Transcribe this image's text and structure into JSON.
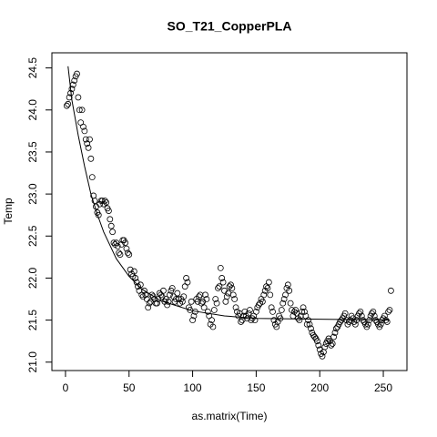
{
  "chart_data": {
    "type": "scatter",
    "title": "SO_T21_CopperPLA",
    "x_label": "as.matrix(Time)",
    "y_label": "Temp",
    "xlim": [
      -10.7,
      268.6
    ],
    "ylim": [
      20.9,
      24.68
    ],
    "xticks": [
      0,
      50,
      100,
      150,
      200,
      250
    ],
    "yticks": [
      {
        "value": 21,
        "label": "21.0"
      },
      21.5,
      {
        "value": 22,
        "label": "22.0"
      },
      22.5,
      {
        "value": 23,
        "label": "23.0"
      },
      23.5,
      {
        "value": 24,
        "label": "24.0"
      },
      24.5
    ],
    "series": [
      {
        "type": "scatter",
        "color": "#000000",
        "x": [
          1,
          2,
          3,
          4,
          5,
          6,
          7,
          8,
          9,
          10,
          11,
          12,
          13,
          14,
          15,
          16,
          17,
          18,
          19,
          20,
          21,
          22,
          23,
          24,
          25,
          26,
          27,
          28,
          29,
          30,
          31,
          32,
          33,
          34,
          35,
          36,
          37,
          38,
          39,
          40,
          41,
          42,
          43,
          44,
          45,
          46,
          47,
          48,
          49,
          50,
          51,
          52,
          53,
          54,
          55,
          56,
          57,
          58,
          59,
          60,
          61,
          62,
          63,
          64,
          65,
          66,
          67,
          68,
          69,
          70,
          71,
          72,
          73,
          74,
          75,
          76,
          77,
          78,
          79,
          80,
          81,
          82,
          83,
          84,
          85,
          86,
          87,
          88,
          89,
          90,
          91,
          92,
          93,
          94,
          95,
          96,
          97,
          98,
          99,
          100,
          101,
          102,
          103,
          104,
          105,
          106,
          107,
          108,
          109,
          110,
          111,
          112,
          113,
          114,
          115,
          116,
          117,
          118,
          119,
          120,
          121,
          122,
          123,
          124,
          125,
          126,
          127,
          128,
          129,
          130,
          131,
          132,
          133,
          134,
          135,
          136,
          137,
          138,
          139,
          140,
          141,
          142,
          143,
          144,
          145,
          146,
          147,
          148,
          149,
          150,
          151,
          152,
          153,
          154,
          155,
          156,
          157,
          158,
          159,
          160,
          161,
          162,
          163,
          164,
          165,
          166,
          167,
          168,
          169,
          170,
          171,
          172,
          173,
          174,
          175,
          176,
          177,
          178,
          179,
          180,
          181,
          182,
          183,
          184,
          185,
          186,
          187,
          188,
          189,
          190,
          191,
          192,
          193,
          194,
          195,
          196,
          197,
          198,
          199,
          200,
          201,
          202,
          203,
          204,
          205,
          206,
          207,
          208,
          209,
          210,
          211,
          212,
          213,
          214,
          215,
          216,
          217,
          218,
          219,
          220,
          221,
          222,
          223,
          224,
          225,
          226,
          227,
          228,
          229,
          230,
          231,
          232,
          233,
          234,
          235,
          236,
          237,
          238,
          239,
          240,
          241,
          242,
          243,
          244,
          245,
          246,
          247,
          248,
          249,
          250,
          251,
          252,
          253,
          254,
          255,
          256
        ],
        "values": [
          24.05,
          24.07,
          24.15,
          24.2,
          24.25,
          24.3,
          24.35,
          24.4,
          24.43,
          24.15,
          24.0,
          23.85,
          24.0,
          23.8,
          23.75,
          23.65,
          23.6,
          23.55,
          23.65,
          23.42,
          23.2,
          22.98,
          22.92,
          22.85,
          22.78,
          22.75,
          22.88,
          22.92,
          22.92,
          22.88,
          22.92,
          22.9,
          22.83,
          22.8,
          22.7,
          22.62,
          22.55,
          22.42,
          22.4,
          22.42,
          22.38,
          22.3,
          22.28,
          22.4,
          22.45,
          22.45,
          22.42,
          22.35,
          22.3,
          22.28,
          22.1,
          22.05,
          22.02,
          22.08,
          22.0,
          21.95,
          21.9,
          21.85,
          21.92,
          21.8,
          21.78,
          21.85,
          21.8,
          21.75,
          21.65,
          21.7,
          21.72,
          21.8,
          21.78,
          21.75,
          21.7,
          21.7,
          21.75,
          21.82,
          21.8,
          21.78,
          21.85,
          21.72,
          21.75,
          21.68,
          21.72,
          21.8,
          21.85,
          21.88,
          21.78,
          21.72,
          21.75,
          21.82,
          21.75,
          21.7,
          21.75,
          21.72,
          21.78,
          21.9,
          22.0,
          21.95,
          21.65,
          21.62,
          21.72,
          21.5,
          21.55,
          21.6,
          21.75,
          21.72,
          21.78,
          21.8,
          21.7,
          21.72,
          21.65,
          21.8,
          21.75,
          21.6,
          21.55,
          21.45,
          21.5,
          21.42,
          21.62,
          21.75,
          21.7,
          21.88,
          21.9,
          22.12,
          22.0,
          21.95,
          21.85,
          21.72,
          21.78,
          21.82,
          21.9,
          21.92,
          21.88,
          21.8,
          21.75,
          21.65,
          21.6,
          21.55,
          21.58,
          21.48,
          21.5,
          21.55,
          21.6,
          21.55,
          21.52,
          21.58,
          21.62,
          21.5,
          21.52,
          21.55,
          21.5,
          21.6,
          21.65,
          21.68,
          21.7,
          21.75,
          21.72,
          21.8,
          21.85,
          21.9,
          21.88,
          21.95,
          21.8,
          21.65,
          21.6,
          21.5,
          21.45,
          21.42,
          21.48,
          21.55,
          21.52,
          21.62,
          21.7,
          21.75,
          21.8,
          21.88,
          21.92,
          21.85,
          21.7,
          21.62,
          21.55,
          21.6,
          21.62,
          21.58,
          21.52,
          21.5,
          21.55,
          21.6,
          21.65,
          21.6,
          21.55,
          21.45,
          21.5,
          21.45,
          21.4,
          21.35,
          21.32,
          21.3,
          21.28,
          21.25,
          21.2,
          21.15,
          21.1,
          21.07,
          21.12,
          21.18,
          21.22,
          21.25,
          21.28,
          21.25,
          21.2,
          21.22,
          21.3,
          21.35,
          21.4,
          21.42,
          21.45,
          21.48,
          21.5,
          21.52,
          21.55,
          21.58,
          21.5,
          21.45,
          21.48,
          21.5,
          21.55,
          21.52,
          21.48,
          21.45,
          21.5,
          21.55,
          21.58,
          21.6,
          21.55,
          21.5,
          21.48,
          21.45,
          21.42,
          21.45,
          21.5,
          21.55,
          21.58,
          21.6,
          21.55,
          21.5,
          21.48,
          21.45,
          21.42,
          21.45,
          21.5,
          21.52,
          21.55,
          21.5,
          21.48,
          21.6,
          21.62,
          21.85
        ]
      },
      {
        "type": "line",
        "color": "#000000",
        "x": [
          2,
          5,
          10,
          15,
          20,
          25,
          30,
          40,
          50,
          60,
          75,
          100,
          125,
          150,
          200,
          255
        ],
        "values": [
          24.52,
          24.12,
          23.7,
          23.33,
          23.0,
          22.76,
          22.55,
          22.23,
          22.02,
          21.87,
          21.73,
          21.61,
          21.55,
          21.52,
          21.51,
          21.5
        ]
      }
    ]
  }
}
